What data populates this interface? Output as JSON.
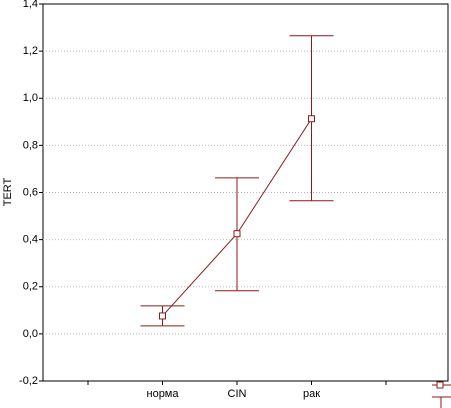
{
  "chart_data": {
    "type": "errorbar",
    "y_label": "TERT",
    "categories": [
      null,
      "норма",
      "CIN",
      "рак",
      null
    ],
    "series": [
      {
        "color": "#8b1a1a",
        "values": [
          null,
          0.076,
          0.425,
          0.913,
          null
        ],
        "lower": [
          null,
          0.034,
          0.183,
          0.565,
          null
        ],
        "upper": [
          null,
          0.119,
          0.662,
          1.265,
          null
        ]
      }
    ],
    "ylim": [
      -0.2,
      1.4
    ],
    "yticks": [
      {
        "value": -0.2,
        "label": "-0,2"
      },
      {
        "value": 0,
        "label": "0,0"
      },
      {
        "value": 0.2,
        "label": "0,2"
      },
      {
        "value": 0.4,
        "label": "0,4"
      },
      {
        "value": 0.6,
        "label": "0,6"
      },
      {
        "value": 0.8,
        "label": "0,8"
      },
      {
        "value": 1.0,
        "label": "1,0"
      },
      {
        "value": 1.2,
        "label": "1,2"
      },
      {
        "value": 1.4,
        "label": "1,4"
      }
    ],
    "grid": true
  }
}
